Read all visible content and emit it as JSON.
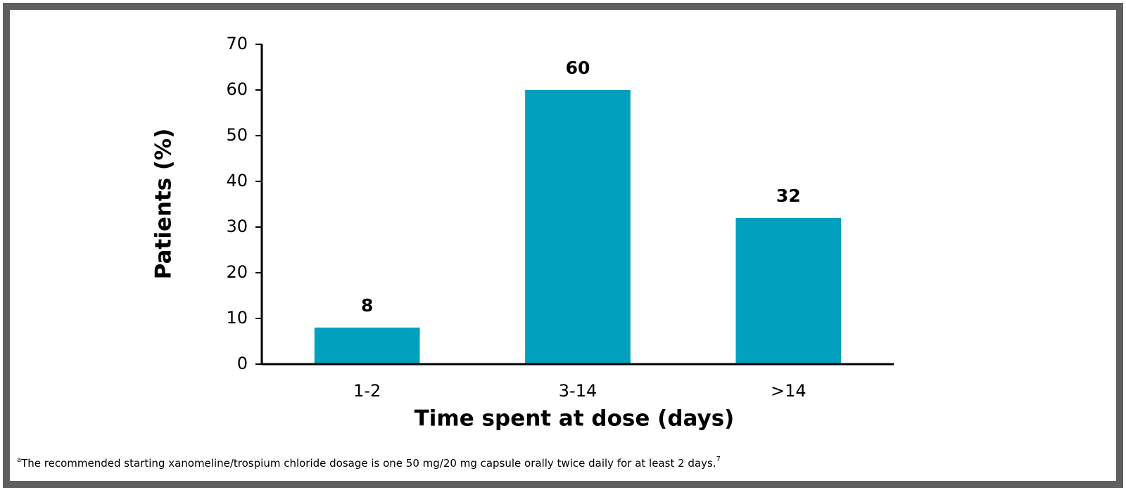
{
  "chart_data": {
    "type": "bar",
    "y_label": "Patients (%)",
    "x_label": "Time spent at dose (days)",
    "categories": [
      "1-2",
      "3-14",
      ">14"
    ],
    "values": [
      8,
      60,
      32
    ],
    "color": "#00a0be",
    "ylim": [
      0,
      70
    ],
    "yticks": [
      0,
      10,
      20,
      30,
      40,
      50,
      60,
      70
    ],
    "grid": false,
    "footnote": {
      "marker": "a",
      "text": "The recommended starting xanomeline/trospium chloride dosage is one 50 mg/20 mg capsule orally twice daily for at least 2 days.",
      "ref": "7"
    }
  }
}
